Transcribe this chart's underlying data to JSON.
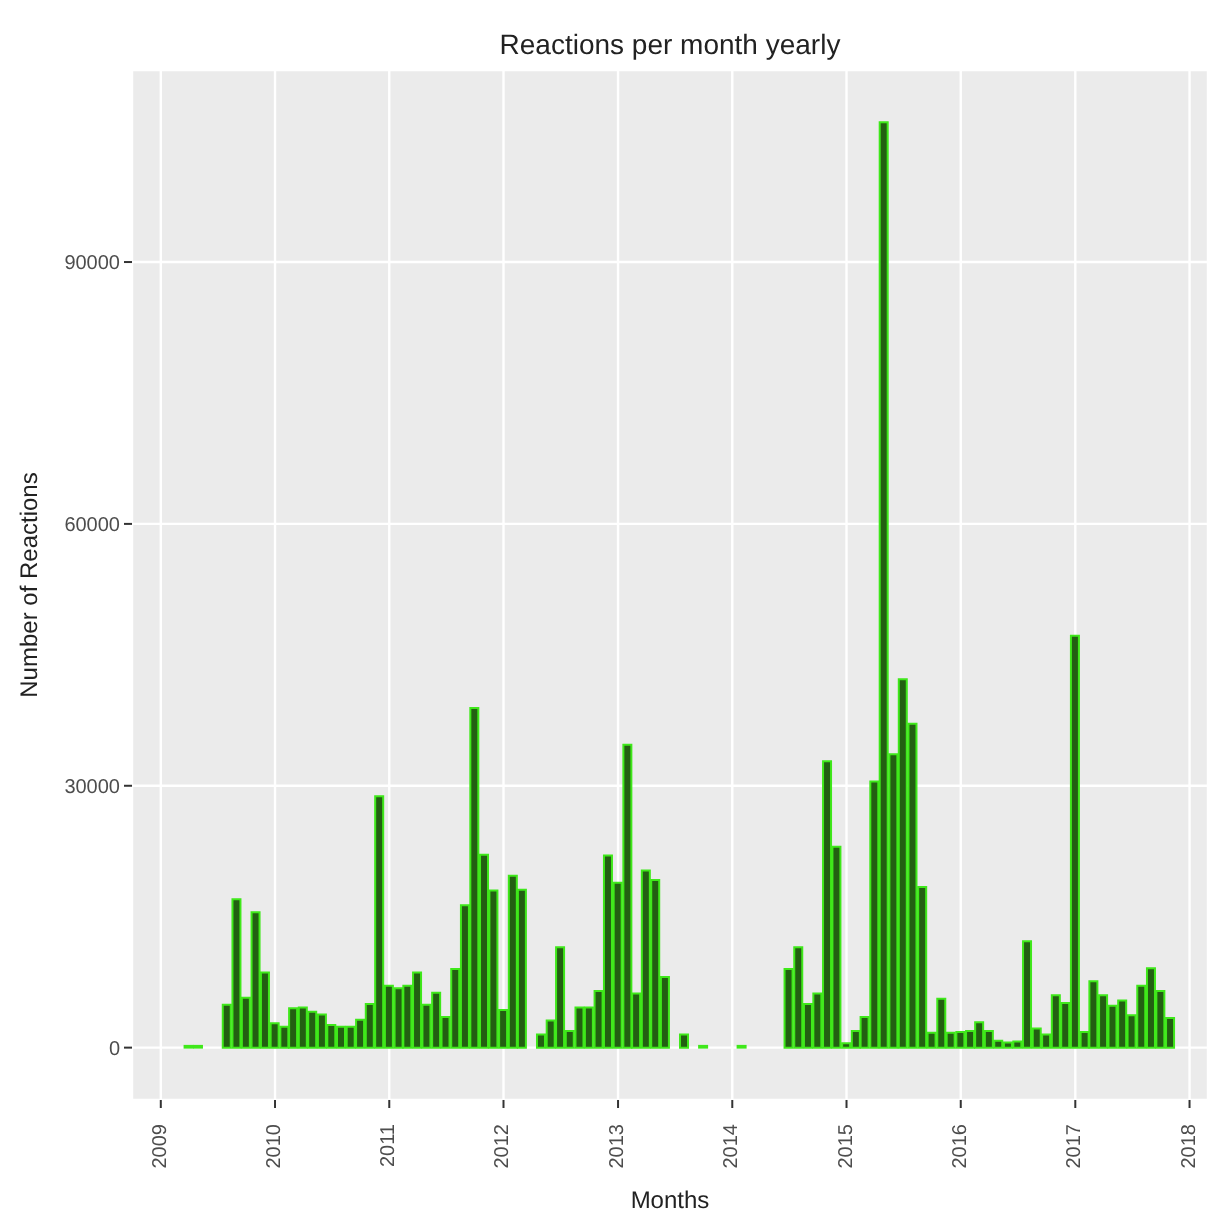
{
  "chart_data": {
    "type": "bar",
    "title": "Reactions per month yearly",
    "xlabel": "Months",
    "ylabel": "Number of Reactions",
    "x": [
      "2009-04",
      "2009-05",
      "2009-08",
      "2009-09",
      "2009-10",
      "2009-11",
      "2009-12",
      "2010-01",
      "2010-02",
      "2010-03",
      "2010-04",
      "2010-05",
      "2010-06",
      "2010-07",
      "2010-08",
      "2010-09",
      "2010-10",
      "2010-11",
      "2010-12",
      "2011-01",
      "2011-02",
      "2011-03",
      "2011-04",
      "2011-05",
      "2011-06",
      "2011-07",
      "2011-08",
      "2011-09",
      "2011-10",
      "2011-11",
      "2011-12",
      "2012-01",
      "2012-02",
      "2012-03",
      "2012-05",
      "2012-06",
      "2012-07",
      "2012-08",
      "2012-09",
      "2012-10",
      "2012-11",
      "2012-12",
      "2013-01",
      "2013-02",
      "2013-03",
      "2013-04",
      "2013-05",
      "2013-06",
      "2013-08",
      "2013-10",
      "2014-02",
      "2014-07",
      "2014-08",
      "2014-09",
      "2014-10",
      "2014-11",
      "2014-12",
      "2015-01",
      "2015-02",
      "2015-03",
      "2015-04",
      "2015-05",
      "2015-06",
      "2015-07",
      "2015-08",
      "2015-09",
      "2015-10",
      "2015-11",
      "2015-12",
      "2016-01",
      "2016-02",
      "2016-03",
      "2016-04",
      "2016-05",
      "2016-06",
      "2016-07",
      "2016-08",
      "2016-09",
      "2016-10",
      "2016-11",
      "2016-12",
      "2017-01",
      "2017-02",
      "2017-03",
      "2017-04",
      "2017-05",
      "2017-06",
      "2017-07",
      "2017-08",
      "2017-09",
      "2017-10",
      "2017-11"
    ],
    "series": [
      {
        "color": "#235f12",
        "values": [
          200,
          200,
          4900,
          17000,
          5700,
          15500,
          8600,
          2800,
          2400,
          4500,
          4600,
          4100,
          3800,
          2600,
          2400,
          2400,
          3200,
          5000,
          28800,
          7100,
          6800,
          7100,
          8600,
          4900,
          6300,
          3500,
          9000,
          16300,
          38900,
          22100,
          18000,
          4300,
          19700,
          18100,
          1500,
          3100,
          11500,
          1900,
          4600,
          4600,
          6500,
          22000,
          18900,
          34700,
          6200,
          20300,
          19200,
          8100,
          1500,
          200,
          200,
          9000,
          11500,
          5000,
          6200,
          32800,
          23000,
          500,
          1900,
          3500,
          30500,
          106000,
          33600,
          42200,
          37100,
          18400,
          1700,
          5600,
          1700,
          1800,
          1900,
          2900,
          1900,
          800,
          600,
          700,
          12200,
          2200,
          1500,
          6000,
          5100,
          47200,
          1800,
          7600,
          6000,
          4800,
          5400,
          3700,
          7100,
          9100,
          6500,
          3400
        ]
      }
    ],
    "xlim": [
      "2008-10",
      "2018-03"
    ],
    "xticks": [
      "2009",
      "2010",
      "2011",
      "2012",
      "2013",
      "2014",
      "2015",
      "2016",
      "2017",
      "2018"
    ],
    "ylim": [
      -6000,
      112000
    ],
    "yticks": [
      0,
      30000,
      60000,
      90000
    ],
    "grid": true
  }
}
